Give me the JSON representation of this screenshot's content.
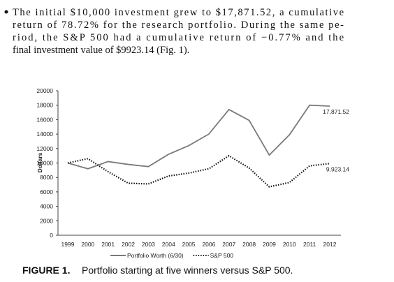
{
  "text": {
    "lines": [
      "The initial $10,000 investment grew to $17,871.52, a cumulative",
      "return of 78.72% for the research portfolio. During the same pe-",
      "riod, the S&P 500 had a cumulative return of −0.77% and the",
      "final investment value of $9923.14 (Fig. 1)."
    ]
  },
  "chart_data": {
    "type": "line",
    "y_label": "Dollars",
    "categories": [
      "1999",
      "2000",
      "2001",
      "2002",
      "2003",
      "2004",
      "2005",
      "2006",
      "2007",
      "2008",
      "2009",
      "2010",
      "2011",
      "2012"
    ],
    "series": [
      {
        "name": "Portfolio Worth (6/30)",
        "color": "#7a7a7a",
        "style": "solid",
        "values": [
          10000,
          9200,
          10200,
          9800,
          9500,
          11200,
          12400,
          14000,
          17400,
          15900,
          11100,
          13900,
          18000,
          17871.52
        ],
        "value_labels": [
          null,
          null,
          null,
          null,
          null,
          null,
          null,
          null,
          null,
          null,
          null,
          null,
          null,
          "17,871.52"
        ]
      },
      {
        "name": "S&P 500",
        "color": "#111111",
        "style": "dotted",
        "values": [
          10000,
          10600,
          8800,
          7200,
          7100,
          8200,
          8600,
          9200,
          11000,
          9300,
          6700,
          7300,
          9600,
          9923.14
        ],
        "value_labels": [
          null,
          null,
          null,
          null,
          null,
          null,
          null,
          null,
          null,
          null,
          null,
          null,
          null,
          "9,923.14"
        ]
      }
    ],
    "ylim": [
      0,
      20000
    ],
    "yticks": [
      0,
      2000,
      4000,
      6000,
      8000,
      10000,
      12000,
      14000,
      16000,
      18000,
      20000
    ],
    "grid": false,
    "legend": "bottom"
  },
  "figure": {
    "label": "FIGURE 1.",
    "caption": "Portfolio starting at five winners versus S&P 500."
  }
}
